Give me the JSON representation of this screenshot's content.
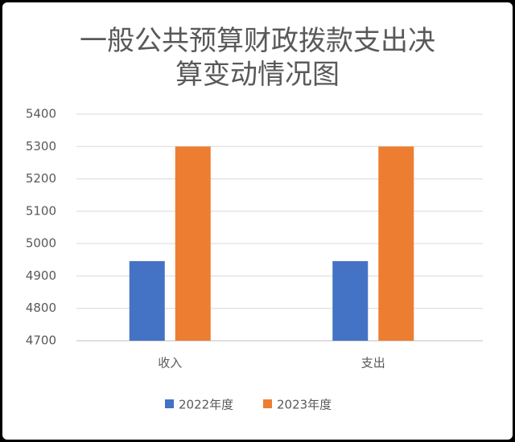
{
  "chart_data": {
    "type": "bar",
    "title": "一般公共预算财政拨款支出决算变动情况图",
    "categories": [
      "收入",
      "支出"
    ],
    "series": [
      {
        "name": "2022年度",
        "color": "#4472c4",
        "values": [
          4946,
          4946
        ]
      },
      {
        "name": "2023年度",
        "color": "#ed7d31",
        "values": [
          5300,
          5300
        ]
      }
    ],
    "ylim": [
      4700,
      5400
    ],
    "yticks": [
      4700,
      4800,
      4900,
      5000,
      5100,
      5200,
      5300,
      5400
    ],
    "grid": true,
    "legend": "bottom"
  }
}
